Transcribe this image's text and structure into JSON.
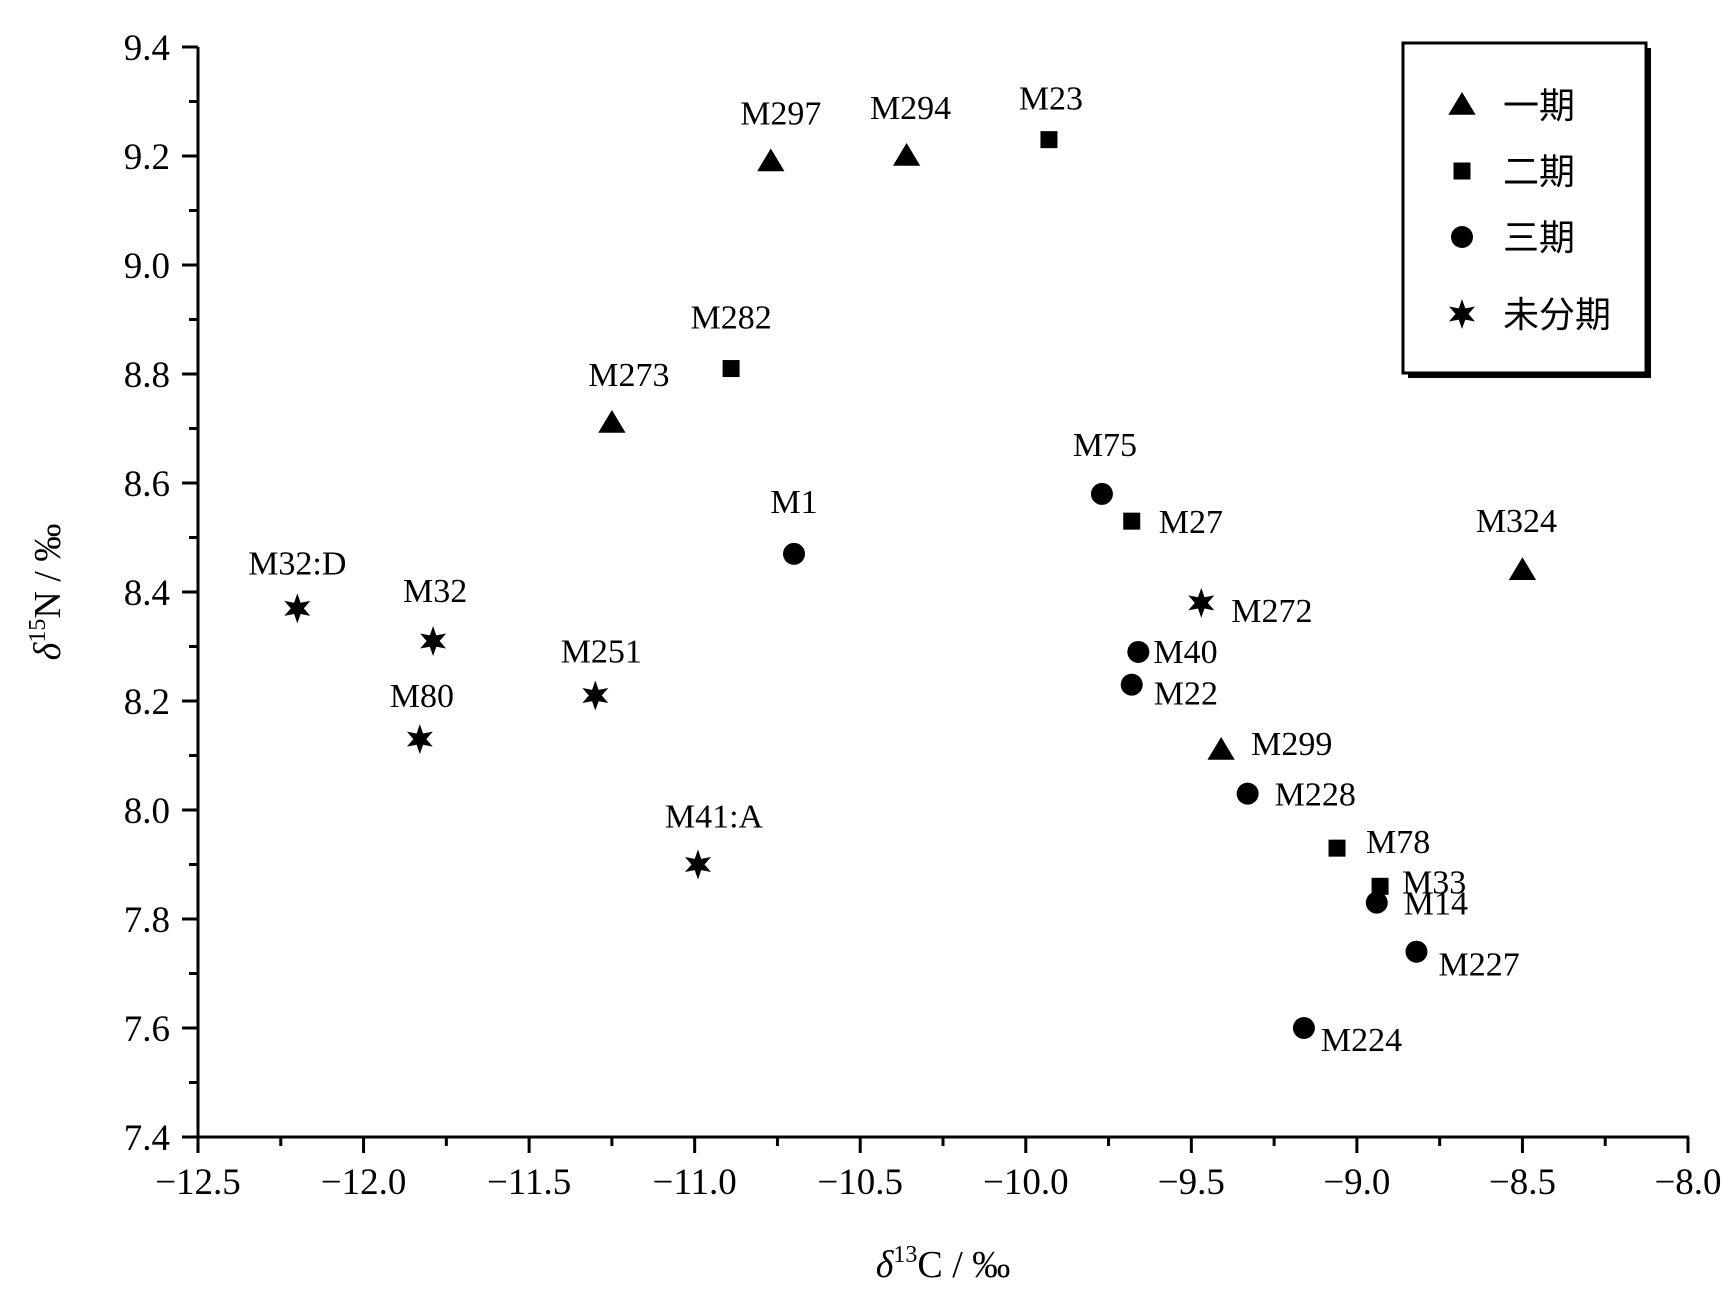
{
  "chart_data": {
    "type": "scatter",
    "xlim": [
      -12.5,
      -8.0
    ],
    "ylim": [
      7.4,
      9.4
    ],
    "x_major_ticks": [
      -12.5,
      -12.0,
      -11.5,
      -11.0,
      -10.5,
      -10.0,
      -9.5,
      -9.0,
      -8.5,
      -8.0
    ],
    "y_major_ticks": [
      7.4,
      7.6,
      7.8,
      8.0,
      8.2,
      8.4,
      8.6,
      8.8,
      9.0,
      9.2,
      9.4
    ],
    "x_tick_labels": [
      "−12.5",
      "−12.0",
      "−11.5",
      "−11.0",
      "−10.5",
      "−10.0",
      "−9.5",
      "−9.0",
      "−8.5",
      "−8.0"
    ],
    "y_tick_labels": [
      "7.4",
      "7.6",
      "7.8",
      "8.0",
      "8.2",
      "8.4",
      "8.6",
      "8.8",
      "9.0",
      "9.2",
      "9.4"
    ],
    "xlabel": {
      "delta": "δ",
      "sup": "13",
      "rest": "C / ‰"
    },
    "ylabel": {
      "delta": "δ",
      "sup": "15",
      "rest": "N / ‰"
    },
    "legend": {
      "position": "top-right"
    },
    "grid": false,
    "series": [
      {
        "name": "一期",
        "marker": "triangle",
        "points": [
          {
            "label": "M297",
            "x": -10.77,
            "y": 9.19
          },
          {
            "label": "M294",
            "x": -10.36,
            "y": 9.2
          },
          {
            "label": "M273",
            "x": -11.25,
            "y": 8.71
          },
          {
            "label": "M324",
            "x": -8.5,
            "y": 8.44
          },
          {
            "label": "M299",
            "x": -9.41,
            "y": 8.11
          }
        ]
      },
      {
        "name": "二期",
        "marker": "square",
        "points": [
          {
            "label": "M23",
            "x": -9.93,
            "y": 9.23
          },
          {
            "label": "M282",
            "x": -10.89,
            "y": 8.81
          },
          {
            "label": "M27",
            "x": -9.68,
            "y": 8.53
          },
          {
            "label": "M78",
            "x": -9.06,
            "y": 7.93
          },
          {
            "label": "M33",
            "x": -8.93,
            "y": 7.86
          }
        ]
      },
      {
        "name": "三期",
        "marker": "circle",
        "points": [
          {
            "label": "M75",
            "x": -9.77,
            "y": 8.58
          },
          {
            "label": "M1",
            "x": -10.7,
            "y": 8.47
          },
          {
            "label": "M40",
            "x": -9.66,
            "y": 8.29
          },
          {
            "label": "M22",
            "x": -9.68,
            "y": 8.23
          },
          {
            "label": "M228",
            "x": -9.33,
            "y": 8.03
          },
          {
            "label": "M14",
            "x": -8.94,
            "y": 7.83
          },
          {
            "label": "M227",
            "x": -8.82,
            "y": 7.74
          },
          {
            "label": "M224",
            "x": -9.16,
            "y": 7.6
          }
        ]
      },
      {
        "name": "未分期",
        "marker": "star",
        "points": [
          {
            "label": "M32:D",
            "x": -12.2,
            "y": 8.37
          },
          {
            "label": "M32",
            "x": -11.79,
            "y": 8.31
          },
          {
            "label": "M251",
            "x": -11.3,
            "y": 8.21
          },
          {
            "label": "M80",
            "x": -11.83,
            "y": 8.13
          },
          {
            "label": "M41:A",
            "x": -10.99,
            "y": 7.9
          },
          {
            "label": "M272",
            "x": -9.47,
            "y": 8.38
          }
        ]
      }
    ]
  }
}
